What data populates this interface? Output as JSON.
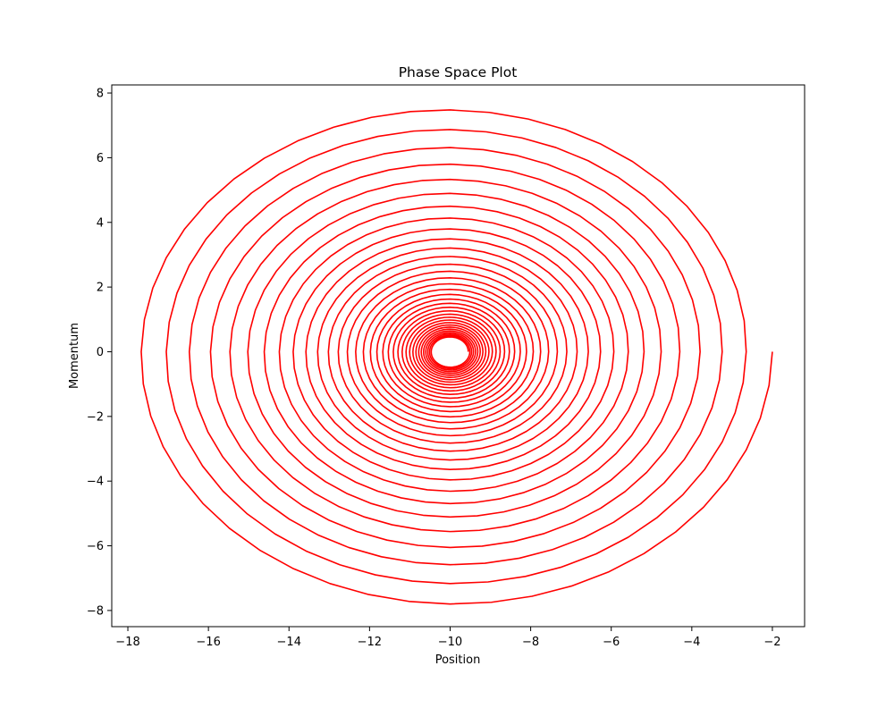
{
  "chart_data": {
    "type": "line",
    "title": "Phase Space Plot",
    "xlabel": "Position",
    "ylabel": "Momentum",
    "xlim": [
      -18.4,
      -1.2
    ],
    "ylim": [
      -8.5,
      8.25
    ],
    "xticks": [
      -18,
      -16,
      -14,
      -12,
      -10,
      -8,
      -6,
      -4,
      -2
    ],
    "yticks": [
      -8,
      -6,
      -4,
      -2,
      0,
      2,
      4,
      6,
      8
    ],
    "xtick_labels": [
      "−18",
      "−16",
      "−14",
      "−12",
      "−10",
      "−8",
      "−6",
      "−4",
      "−2"
    ],
    "ytick_labels": [
      "−8",
      "−6",
      "−4",
      "−2",
      "0",
      "2",
      "4",
      "6",
      "8"
    ],
    "grid": false,
    "series": [
      {
        "color": "#ff0000",
        "curve": "damped spiral",
        "start": {
          "x": -2.0,
          "y": 0.0
        },
        "center": {
          "x": -10.0,
          "y": 0.0
        },
        "approx_turns": 34,
        "leftmost_x": -17.65,
        "min_y": -7.8,
        "max_y": 7.47,
        "inner_radius": 0.45
      }
    ]
  }
}
